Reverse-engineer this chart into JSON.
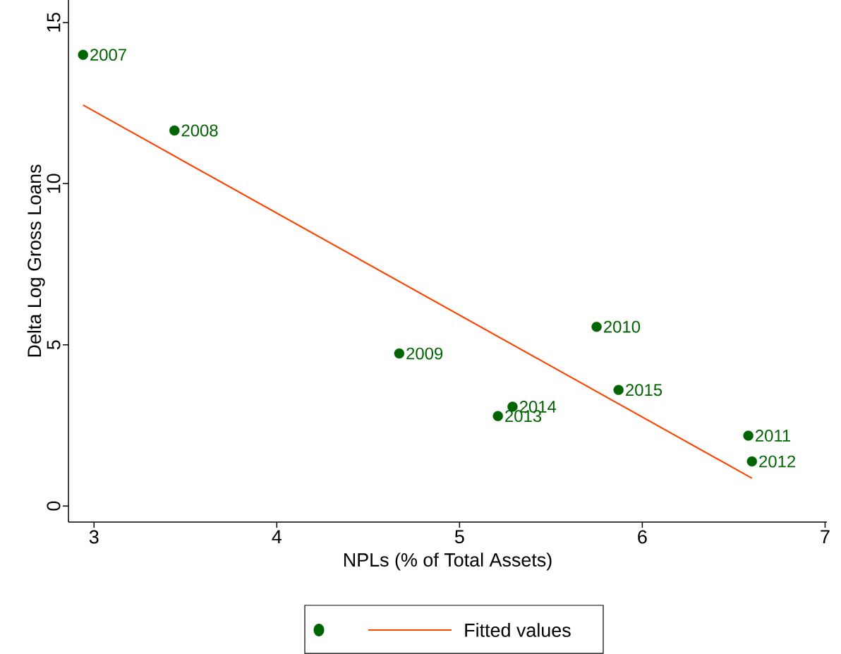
{
  "chart_data": {
    "type": "scatter",
    "xlabel": "NPLs (% of Total Assets)",
    "ylabel": "Delta Log Gross Loans",
    "xlim": [
      2.86,
      7.01
    ],
    "ylim": [
      -0.5,
      15.7
    ],
    "xticks": [
      3,
      4,
      5,
      6,
      7
    ],
    "yticks": [
      0,
      5,
      10,
      15
    ],
    "grid": false,
    "legend": "bottom",
    "series": [
      {
        "color": "#006400",
        "marker": "circle",
        "x": [
          2.94,
          3.44,
          4.67,
          5.75,
          6.58,
          6.6,
          5.21,
          5.29,
          5.87
        ],
        "values": [
          14.0,
          11.65,
          4.73,
          5.56,
          2.18,
          1.38,
          2.79,
          3.08,
          3.6
        ]
      },
      {
        "type": "line",
        "name": "Fitted values",
        "color": "#ff4500",
        "marker": "none",
        "line_style": "solid",
        "x": [
          2.94,
          6.6
        ],
        "values": [
          12.44,
          0.86
        ]
      }
    ],
    "annotations": [
      {
        "text": "2007",
        "x": 2.94,
        "y": 14.0
      },
      {
        "text": "2008",
        "x": 3.44,
        "y": 11.65
      },
      {
        "text": "2009",
        "x": 4.67,
        "y": 4.73
      },
      {
        "text": "2010",
        "x": 5.75,
        "y": 5.56
      },
      {
        "text": "2011",
        "x": 6.58,
        "y": 2.18
      },
      {
        "text": "2012",
        "x": 6.6,
        "y": 1.38
      },
      {
        "text": "2013",
        "x": 5.21,
        "y": 2.79
      },
      {
        "text": "2014",
        "x": 5.29,
        "y": 3.08
      },
      {
        "text": "2015",
        "x": 5.87,
        "y": 3.6
      }
    ]
  }
}
